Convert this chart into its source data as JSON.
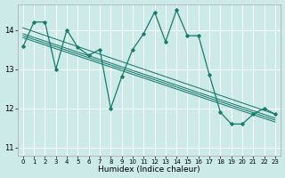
{
  "xlabel": "Humidex (Indice chaleur)",
  "background_color": "#cceae7",
  "grid_color": "#ffffff",
  "line_color": "#1a7a6e",
  "xlim": [
    -0.5,
    23.5
  ],
  "ylim": [
    10.8,
    14.65
  ],
  "yticks": [
    11,
    12,
    13,
    14
  ],
  "xticks": [
    0,
    1,
    2,
    3,
    4,
    5,
    6,
    7,
    8,
    9,
    10,
    11,
    12,
    13,
    14,
    15,
    16,
    17,
    18,
    19,
    20,
    21,
    22,
    23
  ],
  "main_series": [
    13.57,
    14.2,
    14.2,
    13.0,
    14.0,
    13.55,
    13.35,
    13.5,
    12.0,
    12.8,
    13.5,
    13.9,
    14.45,
    13.7,
    14.5,
    13.85,
    13.85,
    12.85,
    11.9,
    11.6,
    11.6,
    11.85,
    12.0,
    11.85
  ],
  "trend_lines": [
    {
      "x0": 0,
      "y0": 14.05,
      "x1": 23,
      "y1": 11.85
    },
    {
      "x0": 0,
      "y0": 13.9,
      "x1": 23,
      "y1": 11.75
    },
    {
      "x0": 0,
      "y0": 13.85,
      "x1": 23,
      "y1": 11.7
    },
    {
      "x0": 0,
      "y0": 13.8,
      "x1": 23,
      "y1": 11.65
    }
  ]
}
